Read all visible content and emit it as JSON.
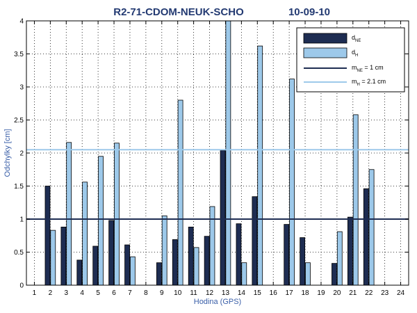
{
  "chart_data": {
    "type": "bar",
    "title_left": "R2-71-CDOM-NEUK-SCHO",
    "title_right": "10-09-10",
    "xlabel": "Hodina (GPS)",
    "ylabel": "Odchylky [cm]",
    "ylim": [
      0,
      4
    ],
    "xlim": [
      0.5,
      24.5
    ],
    "grid": "dotted",
    "legend_position": "top-right",
    "categories": [
      "1",
      "2",
      "3",
      "4",
      "5",
      "6",
      "7",
      "8",
      "9",
      "10",
      "11",
      "12",
      "13",
      "14",
      "15",
      "16",
      "17",
      "18",
      "19",
      "20",
      "21",
      "22",
      "23",
      "24"
    ],
    "y_ticks": [
      "0",
      "0.5",
      "1",
      "1.5",
      "2",
      "2.5",
      "3",
      "3.5",
      "4"
    ],
    "series": [
      {
        "name_main": "d",
        "name_sub": "NE",
        "color": "#1e2d52",
        "values": [
          null,
          1.5,
          0.88,
          0.38,
          0.59,
          0.98,
          0.61,
          null,
          0.34,
          0.69,
          0.88,
          0.74,
          2.04,
          0.93,
          1.34,
          null,
          0.92,
          0.72,
          null,
          0.33,
          1.03,
          1.46,
          null,
          null
        ]
      },
      {
        "name_main": "d",
        "name_sub": "H",
        "color": "#9dc9ea",
        "values": [
          null,
          0.83,
          2.16,
          1.56,
          1.95,
          2.15,
          0.43,
          null,
          1.05,
          2.8,
          0.57,
          1.19,
          4.0,
          0.34,
          3.62,
          null,
          3.12,
          0.34,
          null,
          0.81,
          2.58,
          1.75,
          null,
          null
        ]
      }
    ],
    "reference_lines": [
      {
        "name_main": "m",
        "name_sub": "NE",
        "name_rest": " = 1 cm",
        "value": 1.0,
        "color": "#1e2d52"
      },
      {
        "name_main": "m",
        "name_sub": "H",
        "name_rest": " = 2.1 cm",
        "value": 2.05,
        "color": "#9dc9ea"
      }
    ]
  }
}
